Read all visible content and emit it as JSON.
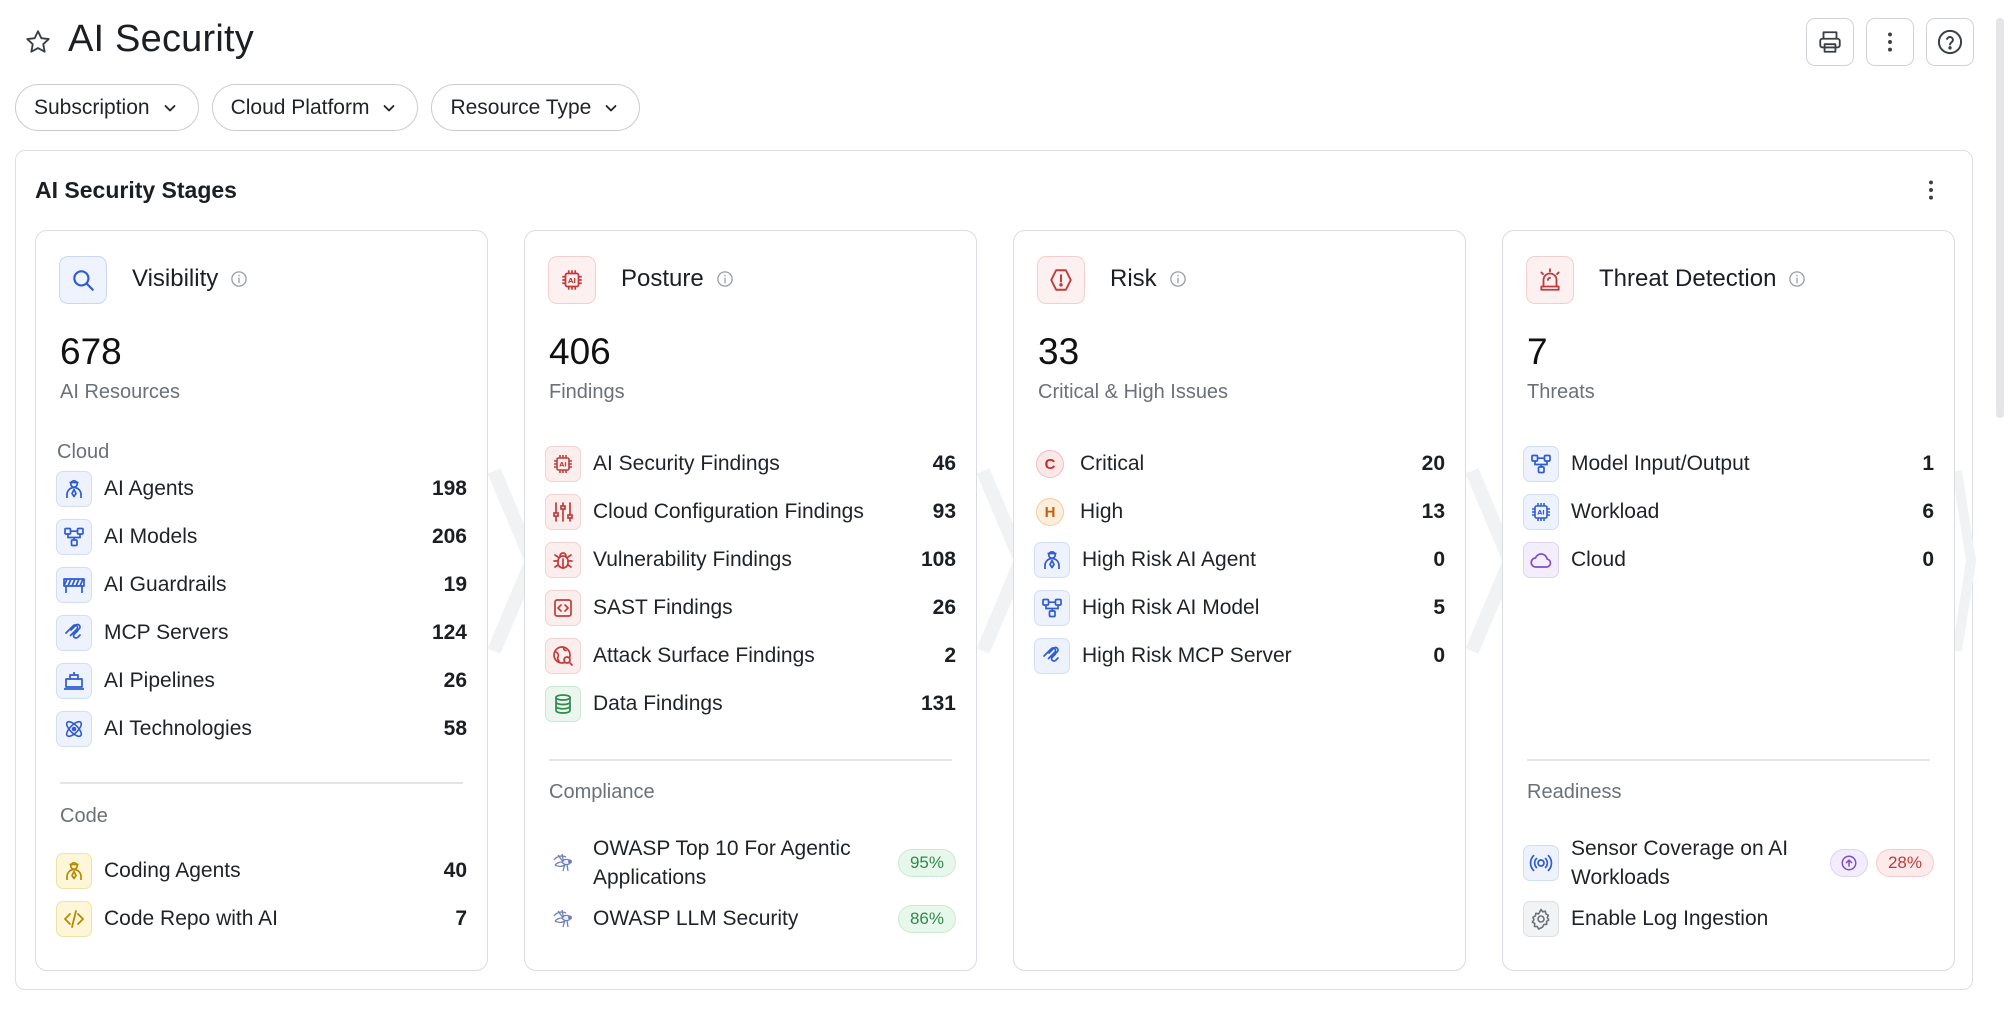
{
  "header": {
    "title": "AI Security",
    "icons": [
      "star-icon",
      "print-icon",
      "more-vertical-icon",
      "help-icon"
    ]
  },
  "filters": [
    {
      "label": "Subscription"
    },
    {
      "label": "Cloud Platform"
    },
    {
      "label": "Resource Type"
    }
  ],
  "panel": {
    "title": "AI Security Stages"
  },
  "cards": {
    "visibility": {
      "name": "Visibility",
      "count": "678",
      "count_label": "AI Resources",
      "cloud_label": "Cloud",
      "cloud_items": [
        {
          "label": "AI Agents",
          "value": "198",
          "icon": "agent-icon"
        },
        {
          "label": "AI Models",
          "value": "206",
          "icon": "model-icon"
        },
        {
          "label": "AI Guardrails",
          "value": "19",
          "icon": "guardrail-icon"
        },
        {
          "label": "MCP Servers",
          "value": "124",
          "icon": "mcp-server-icon"
        },
        {
          "label": "AI Pipelines",
          "value": "26",
          "icon": "pipeline-icon"
        },
        {
          "label": "AI Technologies",
          "value": "58",
          "icon": "technology-icon"
        }
      ],
      "code_label": "Code",
      "code_items": [
        {
          "label": "Coding Agents",
          "value": "40",
          "icon": "coding-agent-icon"
        },
        {
          "label": "Code Repo with AI",
          "value": "7",
          "icon": "code-repo-icon"
        }
      ]
    },
    "posture": {
      "name": "Posture",
      "count": "406",
      "count_label": "Findings",
      "items": [
        {
          "label": "AI Security Findings",
          "value": "46",
          "icon": "ai-chip-icon"
        },
        {
          "label": "Cloud Configuration Findings",
          "value": "93",
          "icon": "sliders-icon"
        },
        {
          "label": "Vulnerability Findings",
          "value": "108",
          "icon": "bug-icon"
        },
        {
          "label": "SAST Findings",
          "value": "26",
          "icon": "code-brackets-icon"
        },
        {
          "label": "Attack Surface Findings",
          "value": "2",
          "icon": "globe-search-icon"
        },
        {
          "label": "Data Findings",
          "value": "131",
          "icon": "database-icon"
        }
      ],
      "compliance_label": "Compliance",
      "compliance": [
        {
          "label": "OWASP Top 10 For Agentic Applications",
          "value": "95%",
          "icon": "owasp-wasp-icon"
        },
        {
          "label": "OWASP LLM Security",
          "value": "86%",
          "icon": "owasp-wasp-icon"
        }
      ]
    },
    "risk": {
      "name": "Risk",
      "count": "33",
      "count_label": "Critical & High Issues",
      "items": [
        {
          "label": "Critical",
          "value": "20",
          "badge": "C"
        },
        {
          "label": "High",
          "value": "13",
          "badge": "H"
        },
        {
          "label": "High Risk AI Agent",
          "value": "0",
          "icon": "agent-icon"
        },
        {
          "label": "High Risk AI Model",
          "value": "5",
          "icon": "model-icon"
        },
        {
          "label": "High Risk MCP Server",
          "value": "0",
          "icon": "mcp-server-icon"
        }
      ]
    },
    "threat": {
      "name": "Threat Detection",
      "count": "7",
      "count_label": "Threats",
      "items": [
        {
          "label": "Model Input/Output",
          "value": "1",
          "icon": "model-icon"
        },
        {
          "label": "Workload",
          "value": "6",
          "icon": "ai-chip-icon"
        },
        {
          "label": "Cloud",
          "value": "0",
          "icon": "cloud-icon"
        }
      ],
      "readiness_label": "Readiness",
      "readiness": [
        {
          "label": "Sensor Coverage on AI Workloads",
          "value": "28%",
          "icon": "sensor-icon"
        },
        {
          "label": "Enable Log Ingestion",
          "icon": "gear-icon"
        }
      ]
    }
  },
  "colors": {
    "accent_blue": "#2f5bd3",
    "accent_red": "#c23b3b",
    "pct_green": "#2f8a4b",
    "pct_red": "#c03a3a"
  }
}
